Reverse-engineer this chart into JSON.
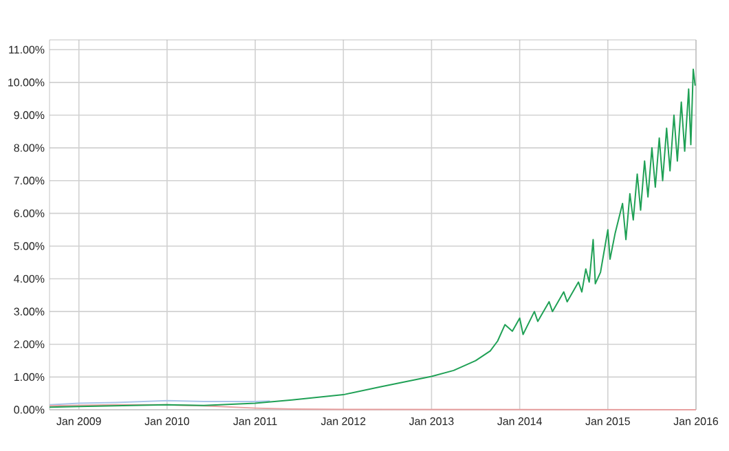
{
  "chart_data": {
    "type": "line",
    "xlim": [
      "2008-09",
      "2016-01"
    ],
    "ylim": [
      0,
      11.3
    ],
    "xticks": [
      {
        "value": "2009-01",
        "label": "Jan 2009"
      },
      {
        "value": "2010-01",
        "label": "Jan 2010"
      },
      {
        "value": "2011-01",
        "label": "Jan 2011"
      },
      {
        "value": "2012-01",
        "label": "Jan 2012"
      },
      {
        "value": "2013-01",
        "label": "Jan 2013"
      },
      {
        "value": "2014-01",
        "label": "Jan 2014"
      },
      {
        "value": "2015-01",
        "label": "Jan 2015"
      },
      {
        "value": "2016-01",
        "label": "Jan 2016"
      }
    ],
    "yticks": [
      {
        "value": 0,
        "label": "0.00%"
      },
      {
        "value": 1,
        "label": "1.00%"
      },
      {
        "value": 2,
        "label": "2.00%"
      },
      {
        "value": 3,
        "label": "3.00%"
      },
      {
        "value": 4,
        "label": "4.00%"
      },
      {
        "value": 5,
        "label": "5.00%"
      },
      {
        "value": 6,
        "label": "6.00%"
      },
      {
        "value": 7,
        "label": "7.00%"
      },
      {
        "value": 8,
        "label": "8.00%"
      },
      {
        "value": 9,
        "label": "9.00%"
      },
      {
        "value": 10,
        "label": "10.00%"
      },
      {
        "value": 11,
        "label": "11.00%"
      }
    ],
    "grid": true,
    "marker": "none",
    "line_style": "solid",
    "series": [
      {
        "color": "#a9c4ea",
        "x": [
          "2008-09",
          "2009-01",
          "2009-06",
          "2010-01",
          "2010-06",
          "2011-01",
          "2011-03"
        ],
        "values": [
          0.15,
          0.2,
          0.22,
          0.28,
          0.25,
          0.25,
          0.27
        ]
      },
      {
        "color": "#e8a0a0",
        "x": [
          "2008-09",
          "2009-06",
          "2010-01",
          "2010-06",
          "2011-01",
          "2011-06",
          "2012-01",
          "2016-01"
        ],
        "values": [
          0.12,
          0.15,
          0.15,
          0.12,
          0.05,
          0.02,
          0.01,
          0
        ]
      },
      {
        "color": "#1fa055",
        "x": [
          "2008-09",
          "2009-01",
          "2010-01",
          "2010-06",
          "2011-01",
          "2011-06",
          "2012-01",
          "2012-06",
          "2013-01",
          "2013-04",
          "2013-07",
          "2013-09",
          "2013-10",
          "2013-11",
          "2013-12",
          "2014-01",
          "2014-01-15",
          "2014-03",
          "2014-03-15",
          "2014-05",
          "2014-05-15",
          "2014-07",
          "2014-07-15",
          "2014-09",
          "2014-09-15",
          "2014-10",
          "2014-10-15",
          "2014-11",
          "2014-11-10",
          "2014-12",
          "2014-12-15",
          "2015-01",
          "2015-01-10",
          "2015-02",
          "2015-03",
          "2015-03-15",
          "2015-04",
          "2015-04-15",
          "2015-05",
          "2015-05-15",
          "2015-06",
          "2015-06-15",
          "2015-07",
          "2015-07-15",
          "2015-08",
          "2015-08-15",
          "2015-09",
          "2015-09-15",
          "2015-10",
          "2015-10-15",
          "2015-11",
          "2015-11-15",
          "2015-12",
          "2015-12-10",
          "2015-12-20",
          "2015-12-28"
        ],
        "values": [
          0.08,
          0.1,
          0.15,
          0.13,
          0.2,
          0.3,
          0.46,
          0.7,
          1.02,
          1.2,
          1.5,
          1.8,
          2.1,
          2.6,
          2.4,
          2.8,
          2.3,
          3.0,
          2.7,
          3.3,
          3.0,
          3.6,
          3.3,
          3.9,
          3.6,
          4.3,
          3.9,
          5.2,
          3.85,
          4.2,
          4.8,
          5.5,
          4.6,
          5.4,
          6.3,
          5.2,
          6.6,
          5.8,
          7.2,
          6.1,
          7.6,
          6.5,
          8.0,
          6.8,
          8.3,
          7.0,
          8.6,
          7.3,
          9.0,
          7.6,
          9.4,
          7.9,
          9.8,
          8.1,
          10.4,
          9.9
        ]
      }
    ]
  }
}
